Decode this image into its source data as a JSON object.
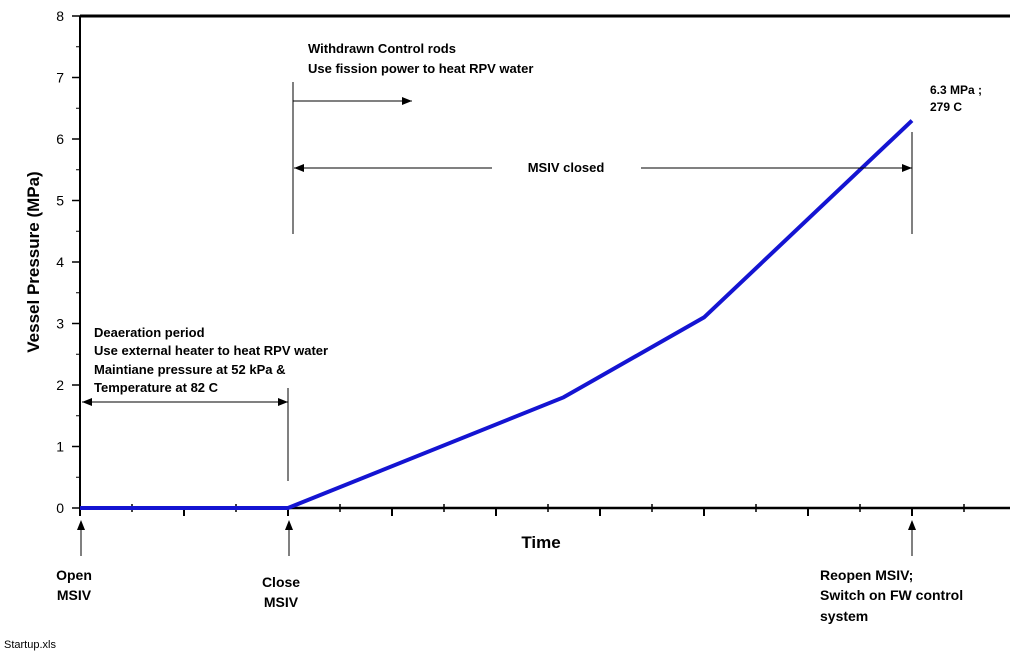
{
  "colors": {
    "series": "#1414d2",
    "axis": "#000000",
    "text": "#000000"
  },
  "chart_data": {
    "type": "line",
    "title": "",
    "xlabel": "Time",
    "ylabel": "Vessel Pressure (MPa)",
    "ylim": [
      0,
      8
    ],
    "xlim": [
      0,
      9
    ],
    "yticks": [
      "0",
      "1",
      "2",
      "3",
      "4",
      "5",
      "6",
      "7",
      "8"
    ],
    "grid": false,
    "series": [
      {
        "values": [
          [
            0,
            0
          ],
          [
            2,
            0
          ],
          [
            4.65,
            1.8
          ],
          [
            6.0,
            3.1
          ],
          [
            8.0,
            6.3
          ]
        ]
      }
    ]
  },
  "annotations": {
    "deaeration": [
      "Deaeration period",
      "Use external heater to heat RPV water",
      "Maintiane pressure at 52 kPa  &",
      "Temperature at 82 C"
    ],
    "withdrawn": [
      "Withdrawn Control rods",
      "Use fission power to heat RPV water"
    ],
    "msiv_closed": "MSIV closed",
    "endpoint": [
      "6.3 MPa ;",
      "279 C"
    ]
  },
  "events": {
    "open": [
      "Open",
      "MSIV"
    ],
    "close": [
      "Close",
      "MSIV"
    ],
    "reopen": [
      "Reopen MSIV;",
      "Switch on FW control",
      "system"
    ]
  },
  "footer": "Startup.xls"
}
